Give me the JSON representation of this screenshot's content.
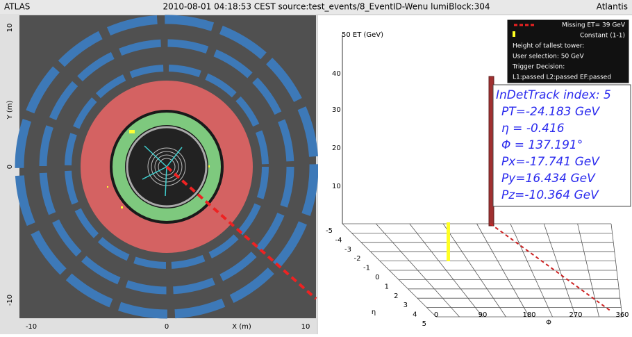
{
  "header": {
    "left": "ATLAS",
    "center": "2010-08-01 04:18:53 CEST source:test_events/8_EventID-Wenu lumiBlock:304",
    "right": "Atlantis"
  },
  "xy_view": {
    "y_axis": {
      "title": "Y (m)",
      "ticks": [
        "10",
        "0",
        "-10"
      ]
    },
    "x_axis": {
      "title": "X (m)",
      "ticks": [
        "-10",
        "0",
        "10"
      ]
    }
  },
  "lego_view": {
    "et_axis": {
      "title": "50 ET (GeV)",
      "ticks": [
        "40",
        "30",
        "20",
        "10"
      ]
    },
    "phi_axis": {
      "title": "Φ",
      "ticks": [
        "0",
        "90",
        "180",
        "270",
        "360"
      ]
    },
    "eta_axis": {
      "title": "η",
      "ticks": [
        "-5",
        "-4",
        "-3",
        "-2",
        "-1",
        "0",
        "1",
        "2",
        "3",
        "4",
        "5"
      ]
    },
    "legend": [
      "Missing ET= 39 GeV",
      "Constant (1-1)",
      "Height of tallest tower:",
      "User selection: 50 GeV",
      "Trigger Decision:",
      "L1:passed L2:passed EF:passed"
    ],
    "track_info": [
      "InDetTrack index: 5",
      "PT=-24.183 GeV",
      "η = -0.416",
      "Φ = 137.191°",
      "Px=-17.741 GeV",
      "Py=16.434 GeV",
      "Pz=-10.364 GeV"
    ]
  }
}
